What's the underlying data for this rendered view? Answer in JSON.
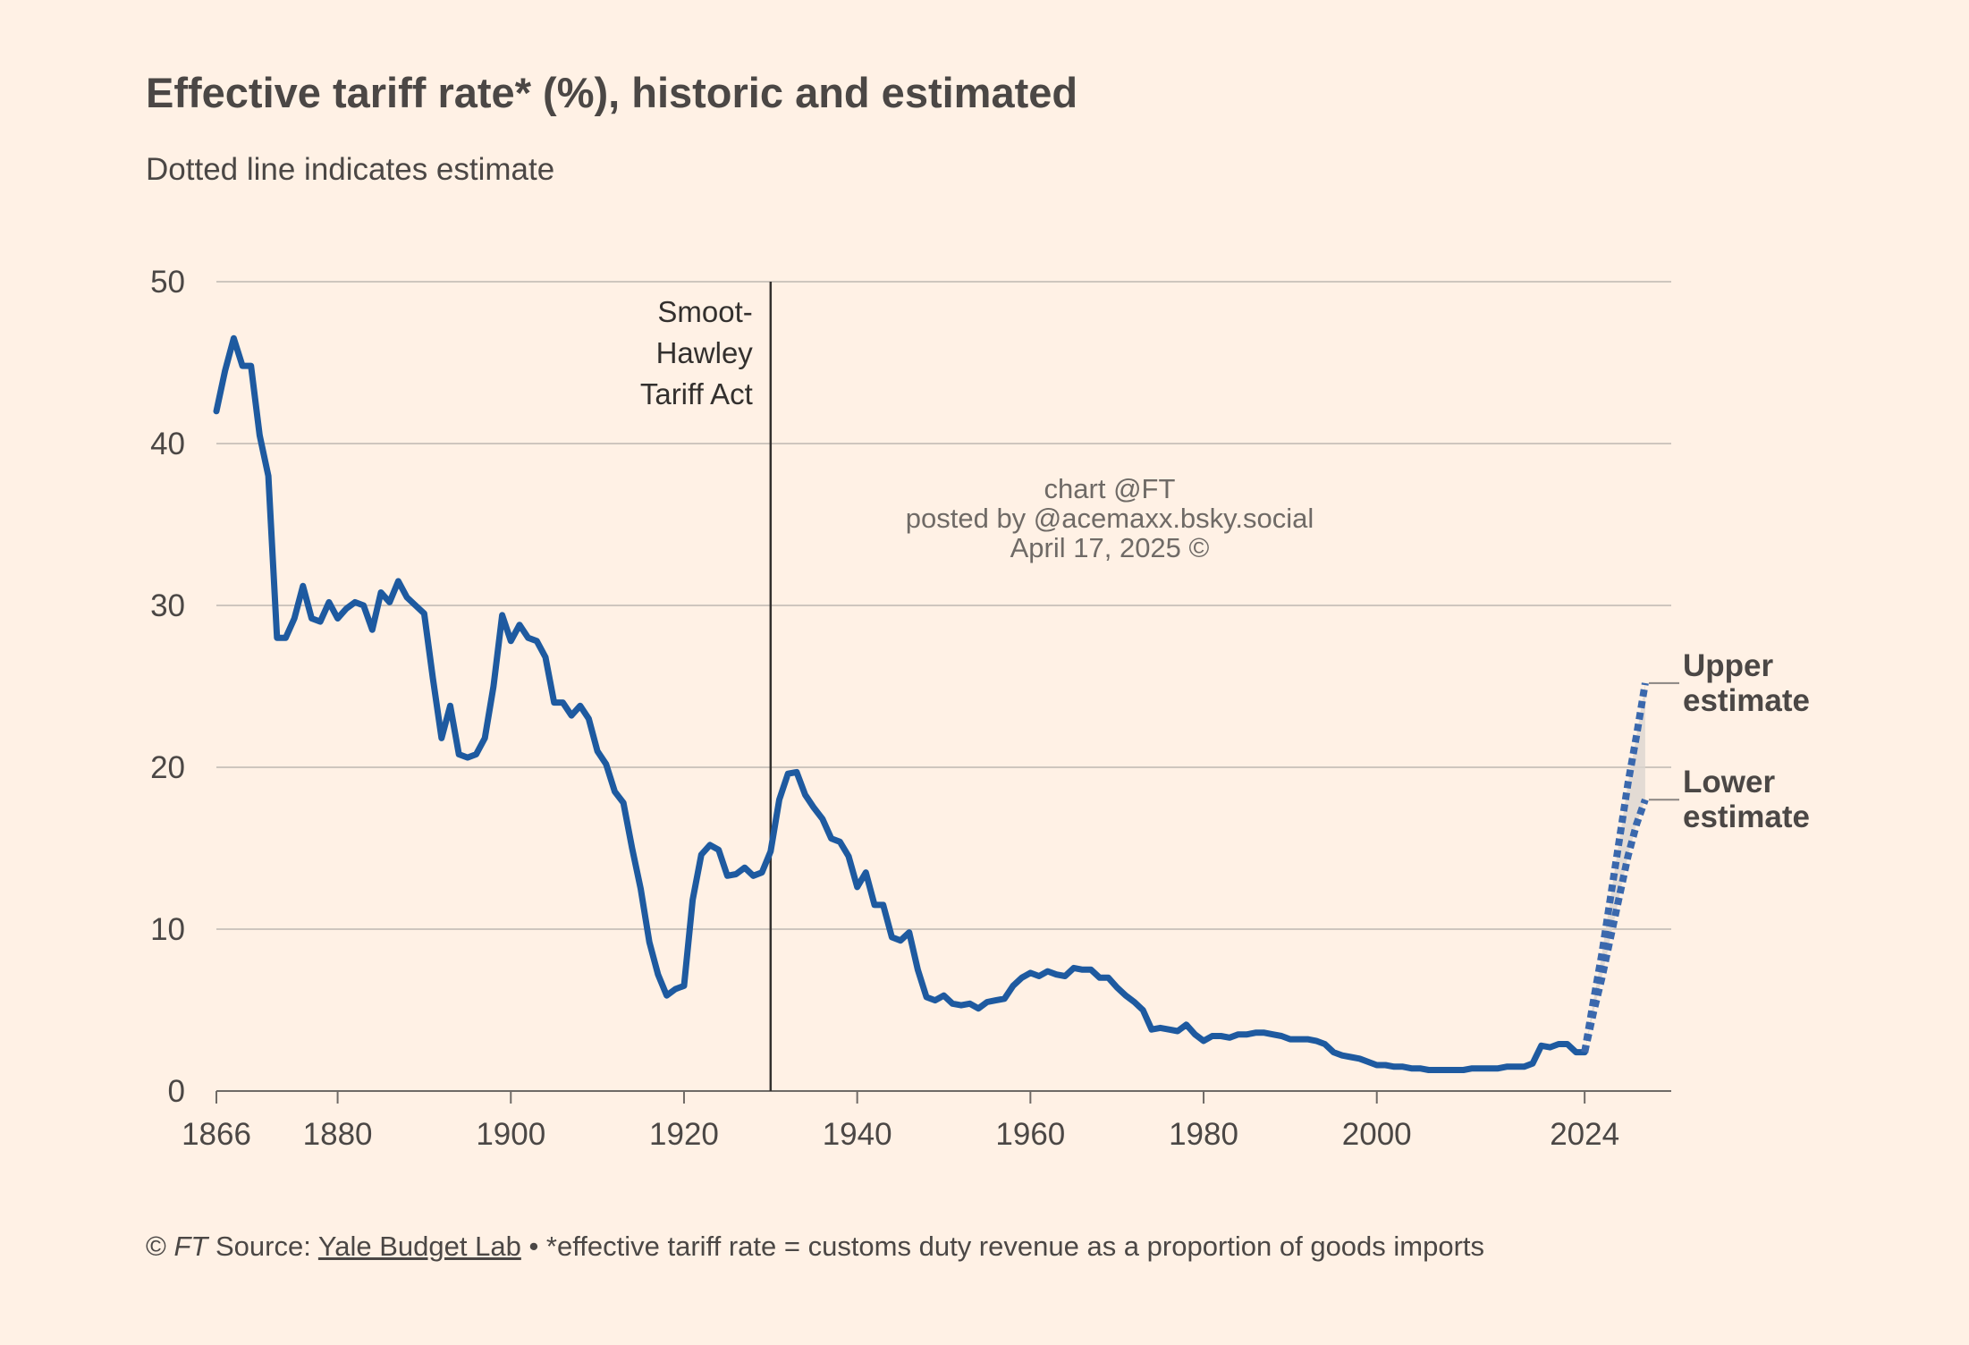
{
  "header": {
    "title": "Effective tariff rate* (%), historic and estimated",
    "subtitle": "Dotted line indicates estimate"
  },
  "annotations": {
    "event_line": {
      "x": 1930,
      "label_lines": [
        "Smoot-",
        "Hawley",
        "Tariff Act"
      ]
    },
    "upper_label": [
      "Upper",
      "estimate"
    ],
    "lower_label": [
      "Lower",
      "estimate"
    ]
  },
  "watermark": {
    "lines": [
      "chart @FT",
      "posted by @acemaxx.bsky.social",
      "April 17, 2025 ©"
    ]
  },
  "footer": {
    "copyright": "©",
    "ft": "FT",
    "source_prefix": "Source:",
    "source_link": "Yale Budget Lab",
    "note": "• *effective tariff rate = customs duty revenue as a proportion of goods imports"
  },
  "colors": {
    "background": "#FFF1E5",
    "line": "#1E5AA0",
    "estimate": "#3A68AD",
    "grid": "#CEC6BE",
    "text": "#4B4745",
    "band": "#DCD6D0"
  },
  "chart_data": {
    "type": "line",
    "title": "Effective tariff rate* (%), historic and estimated",
    "subtitle": "Dotted line indicates estimate",
    "xlabel": "",
    "ylabel": "",
    "xlim": [
      1866,
      2034
    ],
    "ylim": [
      0,
      50
    ],
    "x_ticks": [
      1866,
      1880,
      1900,
      1920,
      1940,
      1960,
      1980,
      2000,
      2024
    ],
    "y_ticks": [
      0,
      10,
      20,
      30,
      40,
      50
    ],
    "grid": true,
    "series": [
      {
        "style": "solid",
        "points": [
          [
            1866,
            42.0
          ],
          [
            1867,
            44.5
          ],
          [
            1868,
            46.5
          ],
          [
            1869,
            44.8
          ],
          [
            1870,
            44.8
          ],
          [
            1871,
            40.5
          ],
          [
            1872,
            38.0
          ],
          [
            1873,
            28.0
          ],
          [
            1874,
            28.0
          ],
          [
            1875,
            29.2
          ],
          [
            1876,
            31.2
          ],
          [
            1877,
            29.2
          ],
          [
            1878,
            29.0
          ],
          [
            1879,
            30.2
          ],
          [
            1880,
            29.2
          ],
          [
            1881,
            29.8
          ],
          [
            1882,
            30.2
          ],
          [
            1883,
            30.0
          ],
          [
            1884,
            28.5
          ],
          [
            1885,
            30.8
          ],
          [
            1886,
            30.2
          ],
          [
            1887,
            31.5
          ],
          [
            1888,
            30.5
          ],
          [
            1889,
            30.0
          ],
          [
            1890,
            29.5
          ],
          [
            1891,
            25.5
          ],
          [
            1892,
            21.8
          ],
          [
            1893,
            23.8
          ],
          [
            1894,
            20.8
          ],
          [
            1895,
            20.6
          ],
          [
            1896,
            20.8
          ],
          [
            1897,
            21.8
          ],
          [
            1898,
            25.0
          ],
          [
            1899,
            29.4
          ],
          [
            1900,
            27.8
          ],
          [
            1901,
            28.8
          ],
          [
            1902,
            28.0
          ],
          [
            1903,
            27.8
          ],
          [
            1904,
            26.8
          ],
          [
            1905,
            24.0
          ],
          [
            1906,
            24.0
          ],
          [
            1907,
            23.2
          ],
          [
            1908,
            23.8
          ],
          [
            1909,
            23.0
          ],
          [
            1910,
            21.0
          ],
          [
            1911,
            20.2
          ],
          [
            1912,
            18.5
          ],
          [
            1913,
            17.8
          ],
          [
            1914,
            15.0
          ],
          [
            1915,
            12.5
          ],
          [
            1916,
            9.2
          ],
          [
            1917,
            7.2
          ],
          [
            1918,
            5.9
          ],
          [
            1919,
            6.3
          ],
          [
            1920,
            6.5
          ],
          [
            1921,
            11.8
          ],
          [
            1922,
            14.6
          ],
          [
            1923,
            15.2
          ],
          [
            1924,
            14.9
          ],
          [
            1925,
            13.3
          ],
          [
            1926,
            13.4
          ],
          [
            1927,
            13.8
          ],
          [
            1928,
            13.3
          ],
          [
            1929,
            13.5
          ],
          [
            1930,
            14.8
          ],
          [
            1931,
            18.0
          ],
          [
            1932,
            19.6
          ],
          [
            1933,
            19.7
          ],
          [
            1934,
            18.3
          ],
          [
            1935,
            17.5
          ],
          [
            1936,
            16.8
          ],
          [
            1937,
            15.6
          ],
          [
            1938,
            15.4
          ],
          [
            1939,
            14.5
          ],
          [
            1940,
            12.6
          ],
          [
            1941,
            13.5
          ],
          [
            1942,
            11.5
          ],
          [
            1943,
            11.5
          ],
          [
            1944,
            9.5
          ],
          [
            1945,
            9.3
          ],
          [
            1946,
            9.8
          ],
          [
            1947,
            7.5
          ],
          [
            1948,
            5.8
          ],
          [
            1949,
            5.6
          ],
          [
            1950,
            5.9
          ],
          [
            1951,
            5.4
          ],
          [
            1952,
            5.3
          ],
          [
            1953,
            5.4
          ],
          [
            1954,
            5.1
          ],
          [
            1955,
            5.5
          ],
          [
            1956,
            5.6
          ],
          [
            1957,
            5.7
          ],
          [
            1958,
            6.5
          ],
          [
            1959,
            7.0
          ],
          [
            1960,
            7.3
          ],
          [
            1961,
            7.1
          ],
          [
            1962,
            7.4
          ],
          [
            1963,
            7.2
          ],
          [
            1964,
            7.1
          ],
          [
            1965,
            7.6
          ],
          [
            1966,
            7.5
          ],
          [
            1967,
            7.5
          ],
          [
            1968,
            7.0
          ],
          [
            1969,
            7.0
          ],
          [
            1970,
            6.4
          ],
          [
            1971,
            5.9
          ],
          [
            1972,
            5.5
          ],
          [
            1973,
            5.0
          ],
          [
            1974,
            3.8
          ],
          [
            1975,
            3.9
          ],
          [
            1976,
            3.8
          ],
          [
            1977,
            3.7
          ],
          [
            1978,
            4.1
          ],
          [
            1979,
            3.5
          ],
          [
            1980,
            3.1
          ],
          [
            1981,
            3.4
          ],
          [
            1982,
            3.4
          ],
          [
            1983,
            3.3
          ],
          [
            1984,
            3.5
          ],
          [
            1985,
            3.5
          ],
          [
            1986,
            3.6
          ],
          [
            1987,
            3.6
          ],
          [
            1988,
            3.5
          ],
          [
            1989,
            3.4
          ],
          [
            1990,
            3.2
          ],
          [
            1991,
            3.2
          ],
          [
            1992,
            3.2
          ],
          [
            1993,
            3.1
          ],
          [
            1994,
            2.9
          ],
          [
            1995,
            2.4
          ],
          [
            1996,
            2.2
          ],
          [
            1997,
            2.1
          ],
          [
            1998,
            2.0
          ],
          [
            1999,
            1.8
          ],
          [
            2000,
            1.6
          ],
          [
            2001,
            1.6
          ],
          [
            2002,
            1.5
          ],
          [
            2003,
            1.5
          ],
          [
            2004,
            1.4
          ],
          [
            2005,
            1.4
          ],
          [
            2006,
            1.3
          ],
          [
            2007,
            1.3
          ],
          [
            2008,
            1.3
          ],
          [
            2009,
            1.3
          ],
          [
            2010,
            1.3
          ],
          [
            2011,
            1.4
          ],
          [
            2012,
            1.4
          ],
          [
            2013,
            1.4
          ],
          [
            2014,
            1.4
          ],
          [
            2015,
            1.5
          ],
          [
            2016,
            1.5
          ],
          [
            2017,
            1.5
          ],
          [
            2018,
            1.7
          ],
          [
            2019,
            2.8
          ],
          [
            2020,
            2.7
          ],
          [
            2021,
            2.9
          ],
          [
            2022,
            2.9
          ],
          [
            2023,
            2.4
          ],
          [
            2024,
            2.4
          ]
        ]
      },
      {
        "name": "Upper estimate",
        "style": "dotted",
        "points": [
          [
            2024,
            2.4
          ],
          [
            2025,
            5.5
          ],
          [
            2026,
            8.5
          ],
          [
            2027,
            12.0
          ],
          [
            2028,
            15.5
          ],
          [
            2029,
            19.0
          ],
          [
            2030,
            22.0
          ],
          [
            2031,
            25.2
          ]
        ]
      },
      {
        "name": "Lower estimate",
        "style": "dotted",
        "points": [
          [
            2024,
            2.4
          ],
          [
            2025,
            4.8
          ],
          [
            2026,
            7.0
          ],
          [
            2027,
            9.5
          ],
          [
            2028,
            12.0
          ],
          [
            2029,
            14.5
          ],
          [
            2030,
            16.5
          ],
          [
            2031,
            18.0
          ]
        ]
      }
    ],
    "event_lines": [
      {
        "x": 1930,
        "label": "Smoot-Hawley Tariff Act"
      }
    ],
    "legend": "inline-right"
  }
}
